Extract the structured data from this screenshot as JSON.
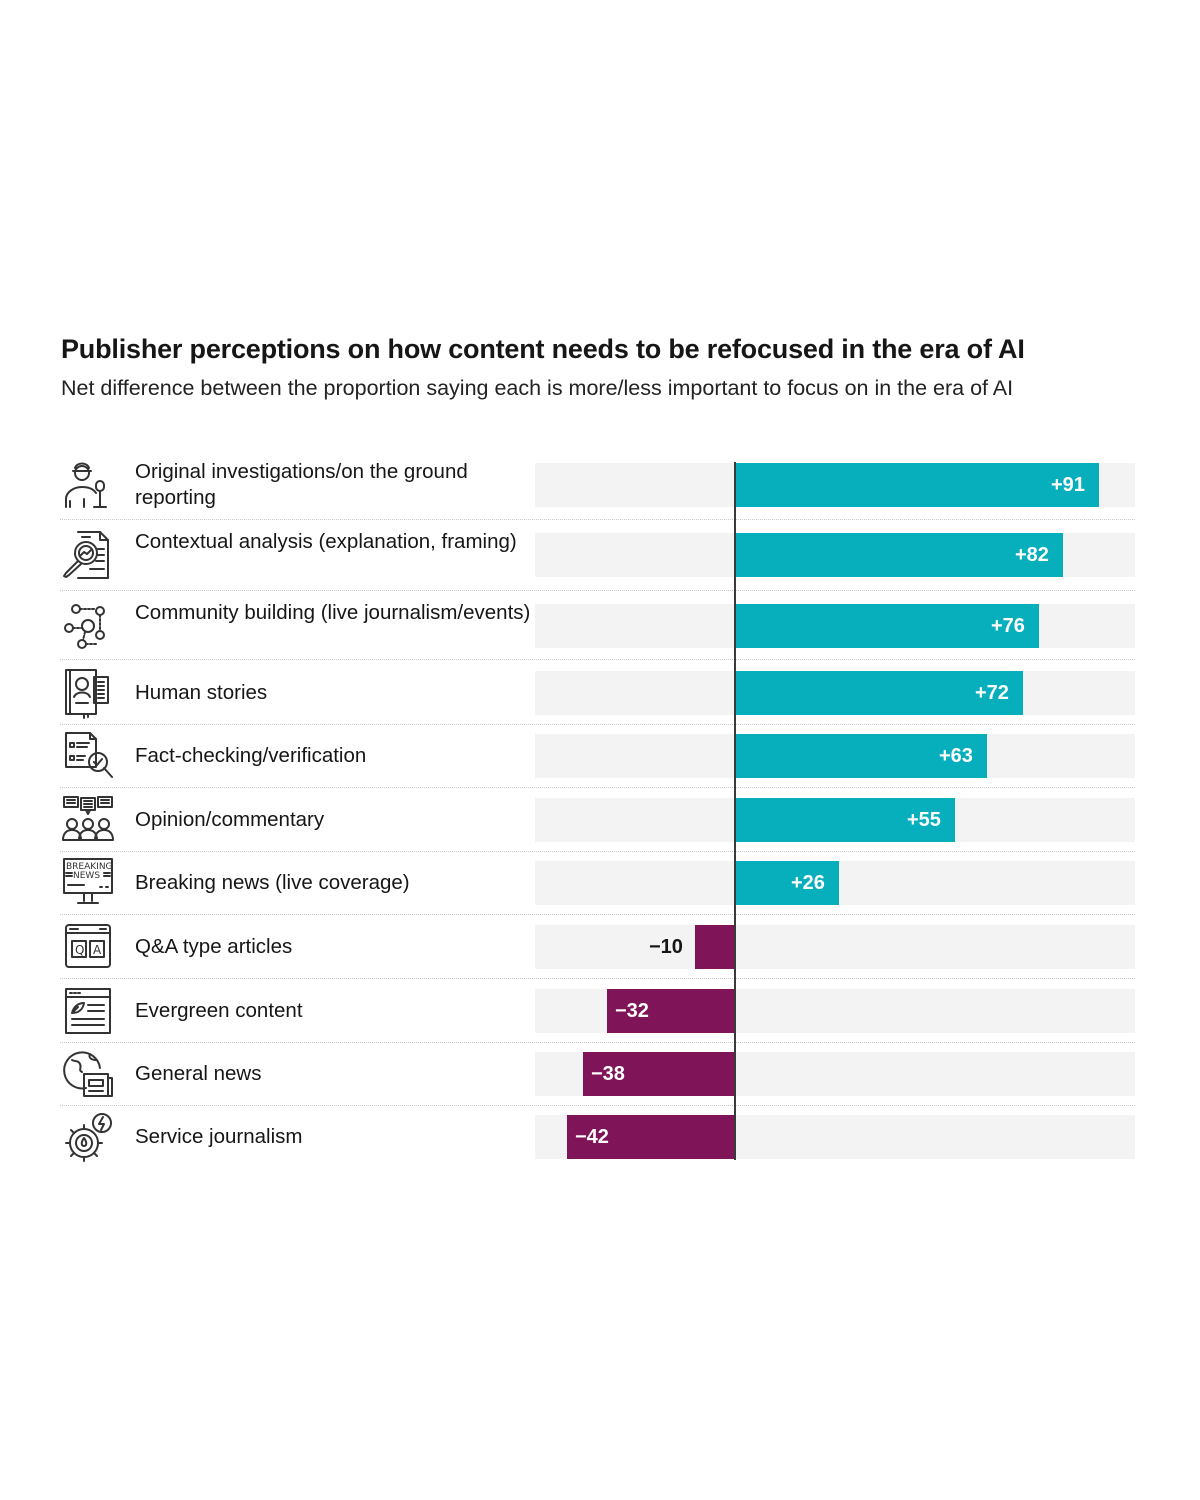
{
  "header": {
    "title": "Publisher perceptions on how content needs to be refocused in the era of AI",
    "subtitle": "Net difference between the proportion saying each is more/less important to focus on in the era of AI"
  },
  "colors": {
    "positive": "#07afbd",
    "negative": "#7f1459",
    "track": "#f3f3f3"
  },
  "rows": [
    {
      "label": "Original investigations/on the ground reporting",
      "value": 91,
      "display": "+91",
      "icon": "reporter-microphone-icon"
    },
    {
      "label": "Contextual analysis (explanation, framing)",
      "value": 82,
      "display": "+82",
      "icon": "magnifier-document-chart-icon"
    },
    {
      "label": "Community building (live journalism/events)",
      "value": 76,
      "display": "+76",
      "icon": "people-network-icon"
    },
    {
      "label": "Human stories",
      "value": 72,
      "display": "+72",
      "icon": "person-profile-book-icon"
    },
    {
      "label": "Fact-checking/verification",
      "value": 63,
      "display": "+63",
      "icon": "checklist-magnifier-icon"
    },
    {
      "label": "Opinion/commentary",
      "value": 55,
      "display": "+55",
      "icon": "audience-speech-bubbles-icon"
    },
    {
      "label": "Breaking news (live coverage)",
      "value": 26,
      "display": "+26",
      "icon": "breaking-news-monitor-icon"
    },
    {
      "label": "Q&A type articles",
      "value": -10,
      "display": "-10",
      "icon": "qa-browser-icon"
    },
    {
      "label": "Evergreen content",
      "value": -32,
      "display": "-32",
      "icon": "leaf-article-icon"
    },
    {
      "label": "General news",
      "value": -38,
      "display": "-38",
      "icon": "globe-newspaper-icon"
    },
    {
      "label": "Service journalism",
      "value": -42,
      "display": "-42",
      "icon": "gear-lightning-icon"
    }
  ],
  "chart_data": {
    "type": "bar",
    "orientation": "horizontal",
    "title": "Publisher perceptions on how content needs to be refocused in the era of AI",
    "subtitle": "Net difference between the proportion saying each is more/less important to focus on in the era of AI",
    "categories": [
      "Original investigations/on the ground reporting",
      "Contextual analysis (explanation, framing)",
      "Community building (live journalism/events)",
      "Human stories",
      "Fact-checking/verification",
      "Opinion/commentary",
      "Breaking news (live coverage)",
      "Q&A type articles",
      "Evergreen content",
      "General news",
      "Service journalism"
    ],
    "values": [
      91,
      82,
      76,
      72,
      63,
      55,
      26,
      -10,
      -32,
      -38,
      -42
    ],
    "data_labels": [
      "+91",
      "+82",
      "+76",
      "+72",
      "+63",
      "+55",
      "+26",
      "-10",
      "-32",
      "-38",
      "-42"
    ],
    "xlabel": "",
    "ylabel": "",
    "xlim": [
      -50,
      100
    ],
    "grid": false,
    "legend": "none",
    "colors": {
      "positive": "#07afbd",
      "negative": "#7f1459"
    }
  }
}
